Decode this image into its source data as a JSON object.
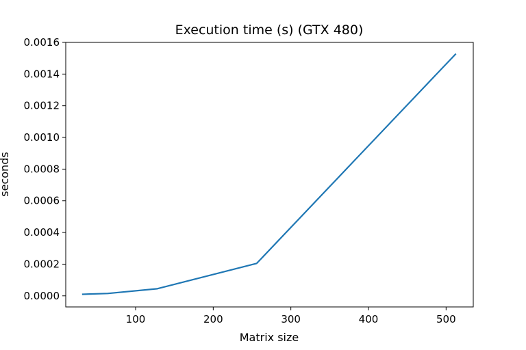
{
  "chart_data": {
    "type": "line",
    "title": "Execution time (s) (GTX 480)",
    "xlabel": "Matrix size",
    "ylabel": "seconds",
    "xlim": [
      10,
      535
    ],
    "ylim": [
      -7e-05,
      0.0016
    ],
    "x_ticks": [
      100,
      200,
      300,
      400,
      500
    ],
    "x_tick_labels": [
      "100",
      "200",
      "300",
      "400",
      "500"
    ],
    "y_ticks": [
      0.0,
      0.0002,
      0.0004,
      0.0006,
      0.0008,
      0.001,
      0.0012,
      0.0014,
      0.0016
    ],
    "y_tick_labels": [
      "0.0000",
      "0.0002",
      "0.0004",
      "0.0006",
      "0.0008",
      "0.0010",
      "0.0012",
      "0.0014",
      "0.0016"
    ],
    "grid": false,
    "series": [
      {
        "color": "#1f77b4",
        "x": [
          32,
          64,
          128,
          256,
          512
        ],
        "y": [
          1e-05,
          1.5e-05,
          4.5e-05,
          0.000205,
          0.001525
        ]
      }
    ]
  }
}
